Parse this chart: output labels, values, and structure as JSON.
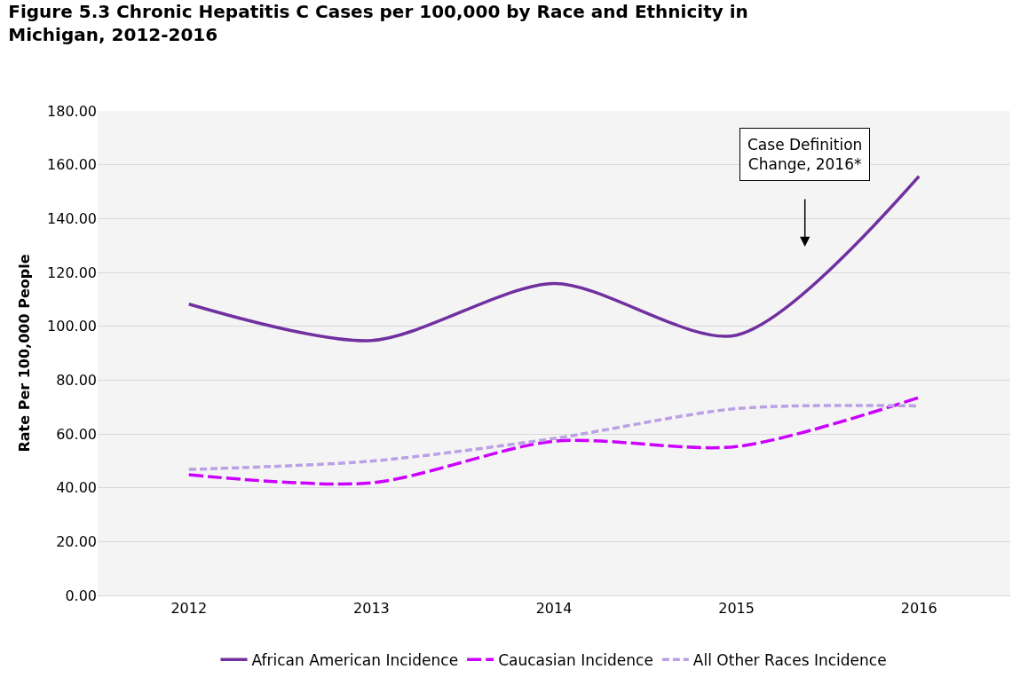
{
  "chart_data": {
    "type": "line",
    "title": "Figure 5.3 Chronic Hepatitis C Cases per 100,000 by Race and Ethnicity in Michigan, 2012-2016",
    "ylabel": "Rate Per 100,000 People",
    "categories": [
      "2012",
      "2013",
      "2014",
      "2015",
      "2016"
    ],
    "series": [
      {
        "name": "African American Incidence",
        "color": "#7030a0",
        "line_style": "solid",
        "values": [
          108.2,
          94.7,
          115.9,
          96.7,
          155.7
        ]
      },
      {
        "name": "Caucasian Incidence",
        "color": "#cc00ff",
        "line_style": "dashed",
        "values": [
          44.8,
          41.8,
          57.3,
          55.3,
          73.5
        ]
      },
      {
        "name": "All Other Races Incidence",
        "color": "#bca0e6",
        "line_style": "dotted",
        "values": [
          46.8,
          49.9,
          58.3,
          69.4,
          70.4
        ]
      }
    ],
    "ylim": [
      0,
      180
    ],
    "yticks": [
      {
        "value": 0,
        "label": "0.00"
      },
      {
        "value": 20,
        "label": "20.00"
      },
      {
        "value": 40,
        "label": "40.00"
      },
      {
        "value": 60,
        "label": "60.00"
      },
      {
        "value": 80,
        "label": "80.00"
      },
      {
        "value": 100,
        "label": "100.00"
      },
      {
        "value": 120,
        "label": "120.00"
      },
      {
        "value": 140,
        "label": "140.00"
      },
      {
        "value": 160,
        "label": "160.00"
      },
      {
        "value": 180,
        "label": "180.00"
      }
    ],
    "grid": "y",
    "legend": "bottom",
    "marker": "none",
    "annotations": [
      "Case Definition Change, 2016*"
    ]
  }
}
